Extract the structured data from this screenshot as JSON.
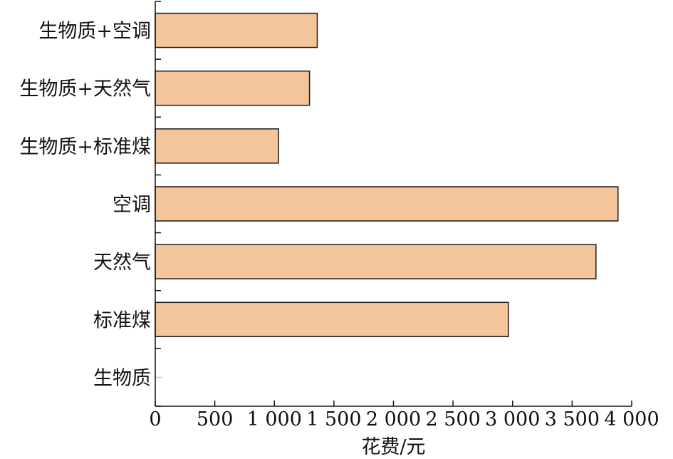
{
  "chart_data": {
    "type": "bar",
    "orientation": "horizontal",
    "categories": [
      "生物质+空调",
      "生物质+天然气",
      "生物质+标准煤",
      "空调",
      "天然气",
      "标准煤",
      "生物质"
    ],
    "values": [
      1360,
      1295,
      1035,
      3885,
      3700,
      2965,
      0
    ],
    "xlabel": "花费/元",
    "ylabel": "",
    "xlim": [
      0,
      4000
    ],
    "xticks": [
      0,
      500,
      1000,
      1500,
      2000,
      2500,
      3000,
      3500,
      4000
    ],
    "xtick_labels": [
      "0",
      "500",
      "1 000",
      "1 500",
      "2 000",
      "2 500",
      "3 000",
      "3 500",
      "4 000"
    ],
    "grid": false,
    "bar_color": "#f4c49b",
    "bar_edge_color": "#1a1a1a"
  }
}
